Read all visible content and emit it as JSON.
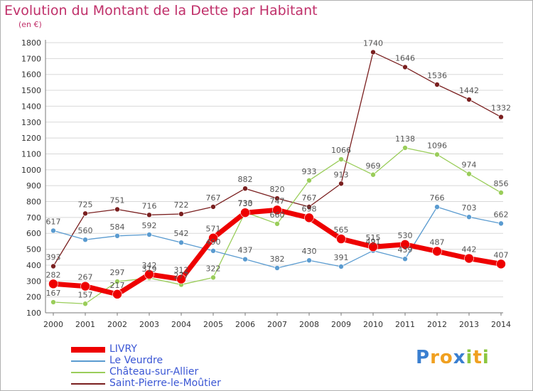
{
  "chart_data": {
    "type": "line",
    "title": "Evolution du Montant de la Dette par Habitant",
    "subtitle": "(en €)",
    "x": [
      "2000",
      "2001",
      "2002",
      "2003",
      "2004",
      "2005",
      "2006",
      "2007",
      "2008",
      "2009",
      "2010",
      "2011",
      "2012",
      "2013",
      "2014"
    ],
    "ylim": [
      100,
      1800
    ],
    "yticks": [
      100,
      200,
      300,
      400,
      500,
      600,
      700,
      800,
      900,
      1000,
      1100,
      1200,
      1300,
      1400,
      1500,
      1600,
      1700,
      1800
    ],
    "grid": "horizontal",
    "legend_position": "bottom-left",
    "series": [
      {
        "name": "Saint-Pierre-le-Moûtier",
        "color": "#7a1f1f",
        "width": 1.3,
        "marker": 3.5,
        "values": [
          393,
          725,
          751,
          716,
          722,
          767,
          882,
          820,
          767,
          913,
          1740,
          1646,
          1536,
          1442,
          1332
        ]
      },
      {
        "name": "Château-sur-Allier",
        "color": "#9acd5a",
        "width": 1.3,
        "marker": 3.5,
        "values": [
          167,
          157,
          297,
          319,
          277,
          322,
          733,
          660,
          933,
          1066,
          969,
          1138,
          1096,
          974,
          856
        ]
      },
      {
        "name": "Le Veurdre",
        "color": "#5a9bd0",
        "width": 1.3,
        "marker": 3.5,
        "values": [
          617,
          560,
          584,
          592,
          542,
          490,
          437,
          382,
          430,
          391,
          491,
          439,
          766,
          703,
          662
        ]
      },
      {
        "name": "LIVRY",
        "color": "#ee0000",
        "width": 7,
        "marker": 6.5,
        "values": [
          282,
          267,
          217,
          342,
          312,
          571,
          730,
          747,
          698,
          565,
          515,
          530,
          487,
          442,
          407
        ]
      }
    ],
    "labels": [
      {
        "x": 0,
        "y": 393,
        "text": "393"
      },
      {
        "x": 1,
        "y": 725,
        "text": "725"
      },
      {
        "x": 2,
        "y": 751,
        "text": "751"
      },
      {
        "x": 3,
        "y": 716,
        "text": "716"
      },
      {
        "x": 4,
        "y": 722,
        "text": "722"
      },
      {
        "x": 5,
        "y": 767,
        "text": "767"
      },
      {
        "x": 6,
        "y": 882,
        "text": "882"
      },
      {
        "x": 7,
        "y": 820,
        "text": "820"
      },
      {
        "x": 8,
        "y": 767,
        "text": "767"
      },
      {
        "x": 9,
        "y": 913,
        "text": "913"
      },
      {
        "x": 10,
        "y": 1740,
        "text": "1740"
      },
      {
        "x": 11,
        "y": 1646,
        "text": "1646"
      },
      {
        "x": 12,
        "y": 1536,
        "text": "1536"
      },
      {
        "x": 13,
        "y": 1442,
        "text": "1442"
      },
      {
        "x": 14,
        "y": 1332,
        "text": "1332"
      },
      {
        "x": 0,
        "y": 167,
        "text": "167"
      },
      {
        "x": 1,
        "y": 157,
        "text": "157"
      },
      {
        "x": 2,
        "y": 297,
        "text": "297"
      },
      {
        "x": 3,
        "y": 319,
        "text": "319"
      },
      {
        "x": 4,
        "y": 277,
        "text": "277"
      },
      {
        "x": 5,
        "y": 322,
        "text": "322"
      },
      {
        "x": 6,
        "y": 733,
        "text": "733"
      },
      {
        "x": 7,
        "y": 660,
        "text": "660"
      },
      {
        "x": 8,
        "y": 933,
        "text": "933"
      },
      {
        "x": 9,
        "y": 1066,
        "text": "1066"
      },
      {
        "x": 10,
        "y": 969,
        "text": "969"
      },
      {
        "x": 11,
        "y": 1138,
        "text": "1138"
      },
      {
        "x": 12,
        "y": 1096,
        "text": "1096"
      },
      {
        "x": 13,
        "y": 974,
        "text": "974"
      },
      {
        "x": 14,
        "y": 856,
        "text": "856"
      },
      {
        "x": 0,
        "y": 617,
        "text": "617"
      },
      {
        "x": 1,
        "y": 560,
        "text": "560"
      },
      {
        "x": 2,
        "y": 584,
        "text": "584"
      },
      {
        "x": 3,
        "y": 592,
        "text": "592"
      },
      {
        "x": 4,
        "y": 542,
        "text": "542"
      },
      {
        "x": 5,
        "y": 490,
        "text": "490"
      },
      {
        "x": 6,
        "y": 437,
        "text": "437"
      },
      {
        "x": 7,
        "y": 382,
        "text": "382"
      },
      {
        "x": 8,
        "y": 430,
        "text": "430"
      },
      {
        "x": 9,
        "y": 391,
        "text": "391"
      },
      {
        "x": 10,
        "y": 491,
        "text": "491"
      },
      {
        "x": 11,
        "y": 439,
        "text": "439"
      },
      {
        "x": 12,
        "y": 766,
        "text": "766"
      },
      {
        "x": 13,
        "y": 703,
        "text": "703"
      },
      {
        "x": 14,
        "y": 662,
        "text": "662"
      },
      {
        "x": 0,
        "y": 282,
        "text": "282"
      },
      {
        "x": 1,
        "y": 267,
        "text": "267"
      },
      {
        "x": 2,
        "y": 217,
        "text": "217"
      },
      {
        "x": 3,
        "y": 342,
        "text": "342"
      },
      {
        "x": 4,
        "y": 312,
        "text": "312"
      },
      {
        "x": 5,
        "y": 571,
        "text": "571"
      },
      {
        "x": 6,
        "y": 730,
        "text": "730"
      },
      {
        "x": 7,
        "y": 747,
        "text": "747"
      },
      {
        "x": 8,
        "y": 698,
        "text": "698"
      },
      {
        "x": 9,
        "y": 565,
        "text": "565"
      },
      {
        "x": 10,
        "y": 515,
        "text": "515"
      },
      {
        "x": 11,
        "y": 530,
        "text": "530"
      },
      {
        "x": 12,
        "y": 487,
        "text": "487"
      },
      {
        "x": 13,
        "y": 442,
        "text": "442"
      },
      {
        "x": 14,
        "y": 407,
        "text": "407"
      }
    ],
    "legend": [
      {
        "name": "LIVRY",
        "color": "#ee0000",
        "thick": true
      },
      {
        "name": "Le Veurdre",
        "color": "#5a9bd0",
        "thick": false
      },
      {
        "name": "Château-sur-Allier",
        "color": "#9acd5a",
        "thick": false
      },
      {
        "name": "Saint-Pierre-le-Moûtier",
        "color": "#7a1f1f",
        "thick": false
      }
    ]
  },
  "logo": {
    "letters": [
      {
        "ch": "P",
        "color": "#3a7fd0"
      },
      {
        "ch": "r",
        "color": "#f0a020"
      },
      {
        "ch": "o",
        "color": "#f0a020"
      },
      {
        "ch": "x",
        "color": "#3a7fd0"
      },
      {
        "ch": "i",
        "color": "#8cc63f"
      },
      {
        "ch": "t",
        "color": "#f0a020"
      },
      {
        "ch": "i",
        "color": "#8cc63f"
      }
    ]
  }
}
